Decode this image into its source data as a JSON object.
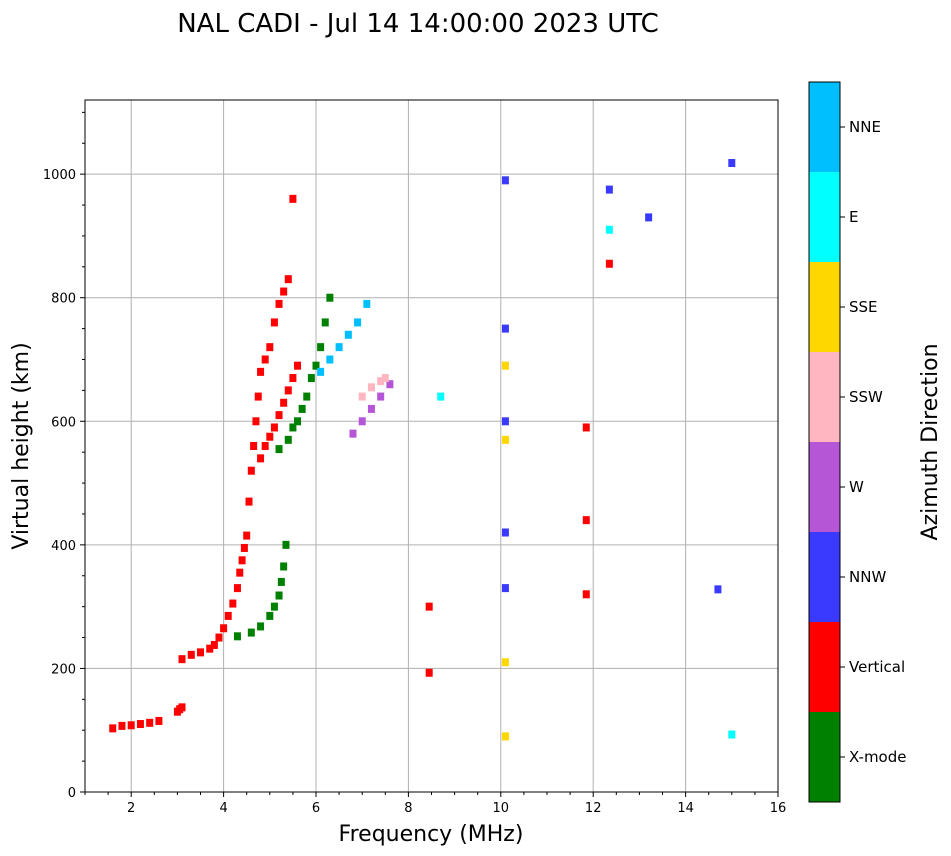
{
  "chart_data": {
    "type": "scatter",
    "title": "NAL CADI - Jul 14 14:00:00 2023 UTC",
    "xlabel": "Frequency (MHz)",
    "ylabel": "Virtual height (km)",
    "xlim": [
      1,
      16
    ],
    "ylim": [
      0,
      1120
    ],
    "grid": true,
    "x_ticks": [
      2,
      4,
      6,
      8,
      10,
      12,
      14,
      16
    ],
    "y_ticks": [
      0,
      200,
      400,
      600,
      800,
      1000
    ],
    "colorbar": {
      "label": "Azimuth Direction",
      "categories": [
        {
          "name": "X-mode",
          "color": "#008000"
        },
        {
          "name": "Vertical",
          "color": "#ff0000"
        },
        {
          "name": "NNW",
          "color": "#3a3aff"
        },
        {
          "name": "W",
          "color": "#b556d6"
        },
        {
          "name": "SSW",
          "color": "#ffb6c1"
        },
        {
          "name": "SSE",
          "color": "#ffd700"
        },
        {
          "name": "E",
          "color": "#00ffff"
        },
        {
          "name": "NNE",
          "color": "#00bfff"
        }
      ]
    },
    "segments": [
      {
        "azimuth": "Vertical",
        "x": [
          1.6,
          1.8,
          2.0,
          2.2,
          2.4,
          2.6
        ],
        "y": [
          103,
          107,
          108,
          110,
          112,
          115
        ]
      },
      {
        "azimuth": "Vertical",
        "x": [
          3.0,
          3.05,
          3.1
        ],
        "y": [
          130,
          134,
          137
        ]
      },
      {
        "azimuth": "Vertical",
        "x": [
          3.1,
          3.3,
          3.5,
          3.7,
          3.8,
          3.9,
          4.0,
          4.1,
          4.2,
          4.3,
          4.35,
          4.4,
          4.45,
          4.5
        ],
        "y": [
          215,
          222,
          226,
          232,
          238,
          250,
          265,
          285,
          305,
          330,
          355,
          375,
          395,
          415
        ]
      },
      {
        "azimuth": "X-mode",
        "x": [
          4.3,
          4.6,
          4.8,
          5.0,
          5.1,
          5.2,
          5.25,
          5.3,
          5.35
        ],
        "y": [
          252,
          258,
          268,
          285,
          300,
          318,
          340,
          365,
          400
        ]
      },
      {
        "azimuth": "Vertical",
        "x": [
          4.55,
          4.6,
          4.65,
          4.7,
          4.75,
          4.8,
          4.9,
          5.0,
          5.1,
          5.2,
          5.3,
          5.4,
          5.5
        ],
        "y": [
          470,
          520,
          560,
          600,
          640,
          680,
          700,
          720,
          760,
          790,
          810,
          830,
          960
        ]
      },
      {
        "azimuth": "Vertical",
        "x": [
          4.8,
          4.9,
          5.0,
          5.1,
          5.2,
          5.3,
          5.4,
          5.5,
          5.6
        ],
        "y": [
          540,
          560,
          575,
          590,
          610,
          630,
          650,
          670,
          690
        ]
      },
      {
        "azimuth": "X-mode",
        "x": [
          5.2,
          5.4,
          5.5,
          5.6,
          5.7,
          5.8,
          5.9,
          6.0,
          6.1,
          6.2,
          6.3
        ],
        "y": [
          555,
          570,
          590,
          600,
          620,
          640,
          670,
          690,
          720,
          760,
          800
        ]
      },
      {
        "azimuth": "NNE",
        "x": [
          6.1,
          6.3,
          6.5,
          6.7,
          6.9,
          7.1
        ],
        "y": [
          680,
          700,
          720,
          740,
          760,
          790
        ]
      },
      {
        "azimuth": "W",
        "x": [
          6.8,
          7.0,
          7.2,
          7.4,
          7.6
        ],
        "y": [
          580,
          600,
          620,
          640,
          660
        ]
      },
      {
        "azimuth": "SSW",
        "x": [
          7.0,
          7.2,
          7.4,
          7.5
        ],
        "y": [
          640,
          655,
          665,
          670
        ]
      },
      {
        "azimuth": "NNW",
        "x": [
          10.1,
          10.1,
          10.1,
          10.1,
          10.1
        ],
        "y": [
          330,
          420,
          600,
          750,
          990
        ]
      },
      {
        "azimuth": "SSE",
        "x": [
          10.1,
          10.1,
          10.1,
          10.1
        ],
        "y": [
          90,
          210,
          570,
          690
        ]
      },
      {
        "azimuth": "E",
        "x": [
          8.7,
          12.35,
          15.0
        ],
        "y": [
          640,
          910,
          93
        ]
      },
      {
        "azimuth": "NNW",
        "x": [
          12.35,
          13.2,
          14.7,
          15.0
        ],
        "y": [
          975,
          930,
          328,
          1018
        ]
      },
      {
        "azimuth": "Vertical",
        "x": [
          11.85,
          11.85,
          11.85,
          12.35,
          8.45,
          8.45
        ],
        "y": [
          590,
          440,
          320,
          855,
          300,
          193
        ]
      }
    ]
  }
}
